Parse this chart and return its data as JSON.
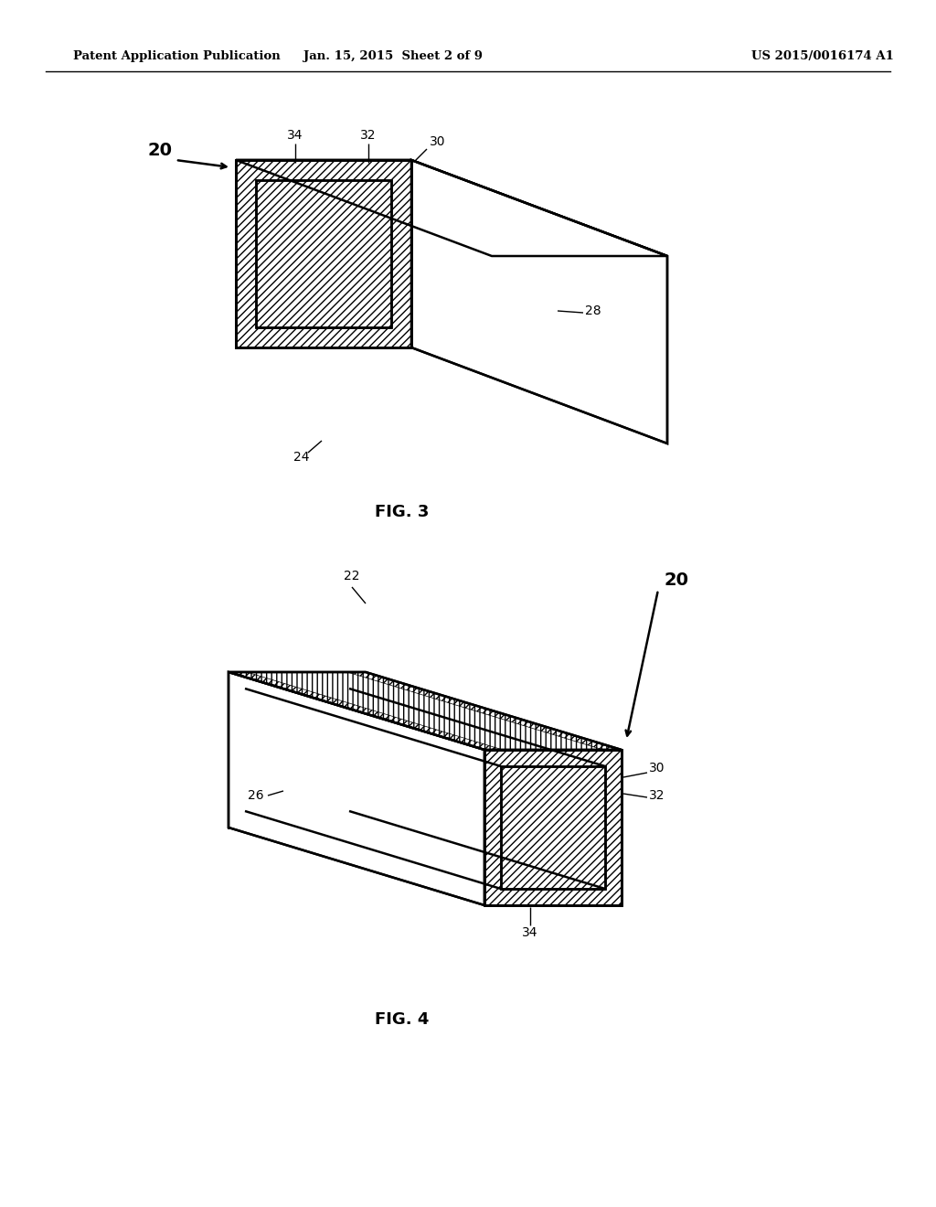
{
  "header_left": "Patent Application Publication",
  "header_center": "Jan. 15, 2015  Sheet 2 of 9",
  "header_right": "US 2015/0016174 A1",
  "fig3_label": "FIG. 3",
  "fig4_label": "FIG. 4",
  "bg_color": "#ffffff",
  "line_color": "#000000"
}
